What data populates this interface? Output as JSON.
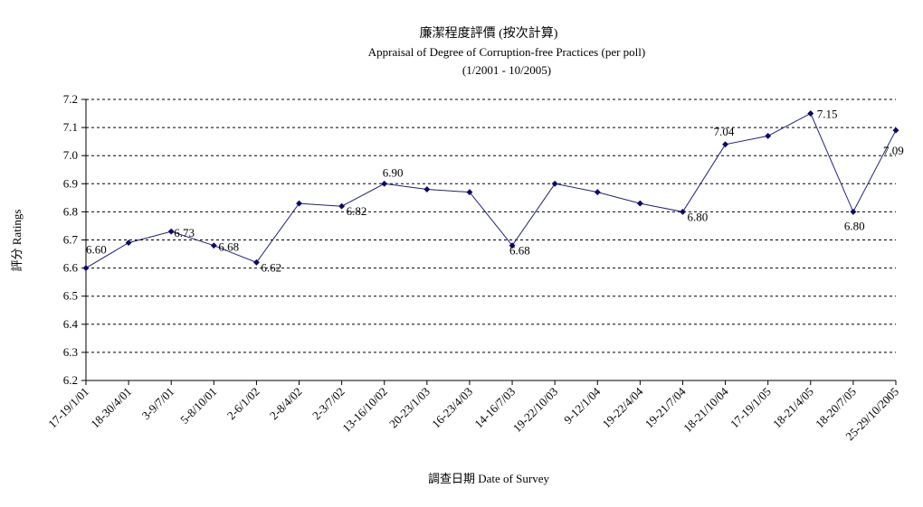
{
  "chart_data": {
    "type": "line",
    "title": "廉潔程度評價 (按次計算)",
    "subtitle": "Appraisal of Degree of Corruption-free Practices (per poll)",
    "subtitle2": "(1/2001 - 10/2005)",
    "xlabel": "調查日期 Date of Survey",
    "ylabel": "評分 Ratings",
    "ylim": [
      6.2,
      7.2
    ],
    "yticks": [
      "6.2",
      "6.3",
      "6.4",
      "6.5",
      "6.6",
      "6.7",
      "6.8",
      "6.9",
      "7.0",
      "7.1",
      "7.2"
    ],
    "grid": "horizontal-dashed",
    "legend": "none",
    "colors": {
      "line": "#1f1f7a",
      "marker": "#0a0a6e",
      "grid": "#000000"
    },
    "categories": [
      "17-19/1/01",
      "18-30/4/01",
      "3-9/7/01",
      "5-8/10/01",
      "2-6/1/02",
      "2-8/4/02",
      "2-3/7/02",
      "13-16/10/02",
      "20-23/1/03",
      "16-23/4/03",
      "14-16/7/03",
      "19-22/10/03",
      "9-12/1/04",
      "19-22/4/04",
      "19-21/7/04",
      "18-21/10/04",
      "17-19/1/05",
      "18-21/4/05",
      "18-20/7/05",
      "25-29/10/2005"
    ],
    "values": [
      6.6,
      6.69,
      6.73,
      6.68,
      6.62,
      6.83,
      6.82,
      6.9,
      6.88,
      6.87,
      6.68,
      6.9,
      6.87,
      6.83,
      6.8,
      7.04,
      7.07,
      7.15,
      6.8,
      7.09
    ],
    "data_labels": [
      {
        "index": 0,
        "text": "6.60"
      },
      {
        "index": 2,
        "text": "6.73"
      },
      {
        "index": 3,
        "text": "6.68"
      },
      {
        "index": 4,
        "text": "6.62"
      },
      {
        "index": 6,
        "text": "6.82"
      },
      {
        "index": 7,
        "text": "6.90"
      },
      {
        "index": 10,
        "text": "6.68"
      },
      {
        "index": 14,
        "text": "6.80"
      },
      {
        "index": 15,
        "text": "7.04"
      },
      {
        "index": 17,
        "text": "7.15"
      },
      {
        "index": 18,
        "text": "6.80"
      },
      {
        "index": 19,
        "text": "7.09"
      }
    ]
  }
}
